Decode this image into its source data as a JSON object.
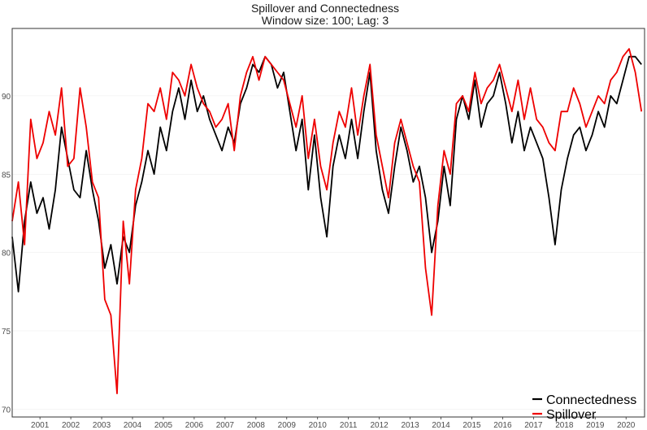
{
  "chart_data": {
    "type": "line",
    "title": "Spillover and Connectedness",
    "subtitle": "Window size: 100; Lag: 3",
    "xlabel": "",
    "ylabel": "",
    "xlim": [
      2000.6,
      2021.1
    ],
    "ylim": [
      69.5,
      94.3
    ],
    "y_ticks": [
      70,
      75,
      80,
      85,
      90
    ],
    "x_ticks": [
      "2001",
      "2002",
      "2003",
      "2004",
      "2005",
      "2006",
      "2007",
      "2008",
      "2009",
      "2010",
      "2011",
      "2012",
      "2013",
      "2014",
      "2015",
      "2016",
      "2017",
      "2018",
      "2019",
      "2020"
    ],
    "grid": true,
    "legend_position": "bottom-right",
    "series": [
      {
        "name": "Connectedness",
        "color": "#000000",
        "x": [
          2000.6,
          2000.8,
          2001.0,
          2001.2,
          2001.4,
          2001.6,
          2001.8,
          2002.0,
          2002.2,
          2002.4,
          2002.6,
          2002.8,
          2003.0,
          2003.2,
          2003.4,
          2003.6,
          2003.8,
          2004.0,
          2004.2,
          2004.4,
          2004.6,
          2004.8,
          2005.0,
          2005.2,
          2005.4,
          2005.6,
          2005.8,
          2006.0,
          2006.2,
          2006.4,
          2006.6,
          2006.8,
          2007.0,
          2007.2,
          2007.4,
          2007.6,
          2007.8,
          2008.0,
          2008.2,
          2008.4,
          2008.6,
          2008.8,
          2009.0,
          2009.2,
          2009.4,
          2009.6,
          2009.8,
          2010.0,
          2010.2,
          2010.4,
          2010.6,
          2010.8,
          2011.0,
          2011.2,
          2011.4,
          2011.6,
          2011.8,
          2012.0,
          2012.2,
          2012.4,
          2012.6,
          2012.8,
          2013.0,
          2013.2,
          2013.4,
          2013.6,
          2013.8,
          2014.0,
          2014.2,
          2014.4,
          2014.6,
          2014.8,
          2015.0,
          2015.2,
          2015.4,
          2015.6,
          2015.8,
          2016.0,
          2016.2,
          2016.4,
          2016.6,
          2016.8,
          2017.0,
          2017.2,
          2017.4,
          2017.6,
          2017.8,
          2018.0,
          2018.2,
          2018.4,
          2018.6,
          2018.8,
          2019.0,
          2019.2,
          2019.4,
          2019.6,
          2019.8,
          2020.0,
          2020.2,
          2020.4,
          2020.6,
          2020.8,
          2021.0
        ],
        "y": [
          81.0,
          77.5,
          82.0,
          84.5,
          82.5,
          83.5,
          81.5,
          84.0,
          88.0,
          86.0,
          84.0,
          83.5,
          86.5,
          84.0,
          82.0,
          79.0,
          80.5,
          78.0,
          81.0,
          80.0,
          83.0,
          84.5,
          86.5,
          85.0,
          88.0,
          86.5,
          89.0,
          90.5,
          88.5,
          91.0,
          89.0,
          90.0,
          88.5,
          87.5,
          86.5,
          88.0,
          87.0,
          89.5,
          90.5,
          92.0,
          91.5,
          92.5,
          92.0,
          90.5,
          91.5,
          89.0,
          86.5,
          88.5,
          84.0,
          87.5,
          83.5,
          81.0,
          85.5,
          87.5,
          86.0,
          88.5,
          86.0,
          89.0,
          91.5,
          86.5,
          84.0,
          82.5,
          85.5,
          88.0,
          86.5,
          84.5,
          85.5,
          83.5,
          80.0,
          82.0,
          85.5,
          83.0,
          88.5,
          90.0,
          88.5,
          91.0,
          88.0,
          89.5,
          90.0,
          91.5,
          89.5,
          87.0,
          89.0,
          86.5,
          88.0,
          87.0,
          86.0,
          83.5,
          80.5,
          84.0,
          86.0,
          87.5,
          88.0,
          86.5,
          87.5,
          89.0,
          88.0,
          90.0,
          89.5,
          91.0,
          92.5,
          92.5,
          92.0
        ]
      },
      {
        "name": "Spillover",
        "color": "#ee0000",
        "x": [
          2000.6,
          2000.8,
          2001.0,
          2001.2,
          2001.4,
          2001.6,
          2001.8,
          2002.0,
          2002.2,
          2002.4,
          2002.6,
          2002.8,
          2003.0,
          2003.2,
          2003.4,
          2003.6,
          2003.8,
          2004.0,
          2004.2,
          2004.4,
          2004.6,
          2004.8,
          2005.0,
          2005.2,
          2005.4,
          2005.6,
          2005.8,
          2006.0,
          2006.2,
          2006.4,
          2006.6,
          2006.8,
          2007.0,
          2007.2,
          2007.4,
          2007.6,
          2007.8,
          2008.0,
          2008.2,
          2008.4,
          2008.6,
          2008.8,
          2009.0,
          2009.2,
          2009.4,
          2009.6,
          2009.8,
          2010.0,
          2010.2,
          2010.4,
          2010.6,
          2010.8,
          2011.0,
          2011.2,
          2011.4,
          2011.6,
          2011.8,
          2012.0,
          2012.2,
          2012.4,
          2012.6,
          2012.8,
          2013.0,
          2013.2,
          2013.4,
          2013.6,
          2013.8,
          2014.0,
          2014.2,
          2014.4,
          2014.6,
          2014.8,
          2015.0,
          2015.2,
          2015.4,
          2015.6,
          2015.8,
          2016.0,
          2016.2,
          2016.4,
          2016.6,
          2016.8,
          2017.0,
          2017.2,
          2017.4,
          2017.6,
          2017.8,
          2018.0,
          2018.2,
          2018.4,
          2018.6,
          2018.8,
          2019.0,
          2019.2,
          2019.4,
          2019.6,
          2019.8,
          2020.0,
          2020.2,
          2020.4,
          2020.6,
          2020.8,
          2021.0
        ],
        "y": [
          82.0,
          84.5,
          80.5,
          88.5,
          86.0,
          87.0,
          89.0,
          87.5,
          90.5,
          85.5,
          86.0,
          90.5,
          88.0,
          84.5,
          83.5,
          77.0,
          76.0,
          71.0,
          82.0,
          78.0,
          84.0,
          86.0,
          89.5,
          89.0,
          90.5,
          88.5,
          91.5,
          91.0,
          90.0,
          92.0,
          90.5,
          89.5,
          89.0,
          88.0,
          88.5,
          89.5,
          86.5,
          90.0,
          91.5,
          92.5,
          91.0,
          92.5,
          92.0,
          91.5,
          91.0,
          89.5,
          88.0,
          90.0,
          86.0,
          88.5,
          85.5,
          84.0,
          87.0,
          89.0,
          88.0,
          90.5,
          87.5,
          90.0,
          92.0,
          87.5,
          85.5,
          83.5,
          87.0,
          88.5,
          87.0,
          85.5,
          84.5,
          79.0,
          76.0,
          83.0,
          86.5,
          85.0,
          89.5,
          90.0,
          89.0,
          91.5,
          89.5,
          90.5,
          91.0,
          92.0,
          90.5,
          89.0,
          91.0,
          88.5,
          90.5,
          88.5,
          88.0,
          87.0,
          86.5,
          89.0,
          89.0,
          90.5,
          89.5,
          88.0,
          89.0,
          90.0,
          89.5,
          91.0,
          91.5,
          92.5,
          93.0,
          91.5,
          89.0
        ]
      }
    ]
  }
}
